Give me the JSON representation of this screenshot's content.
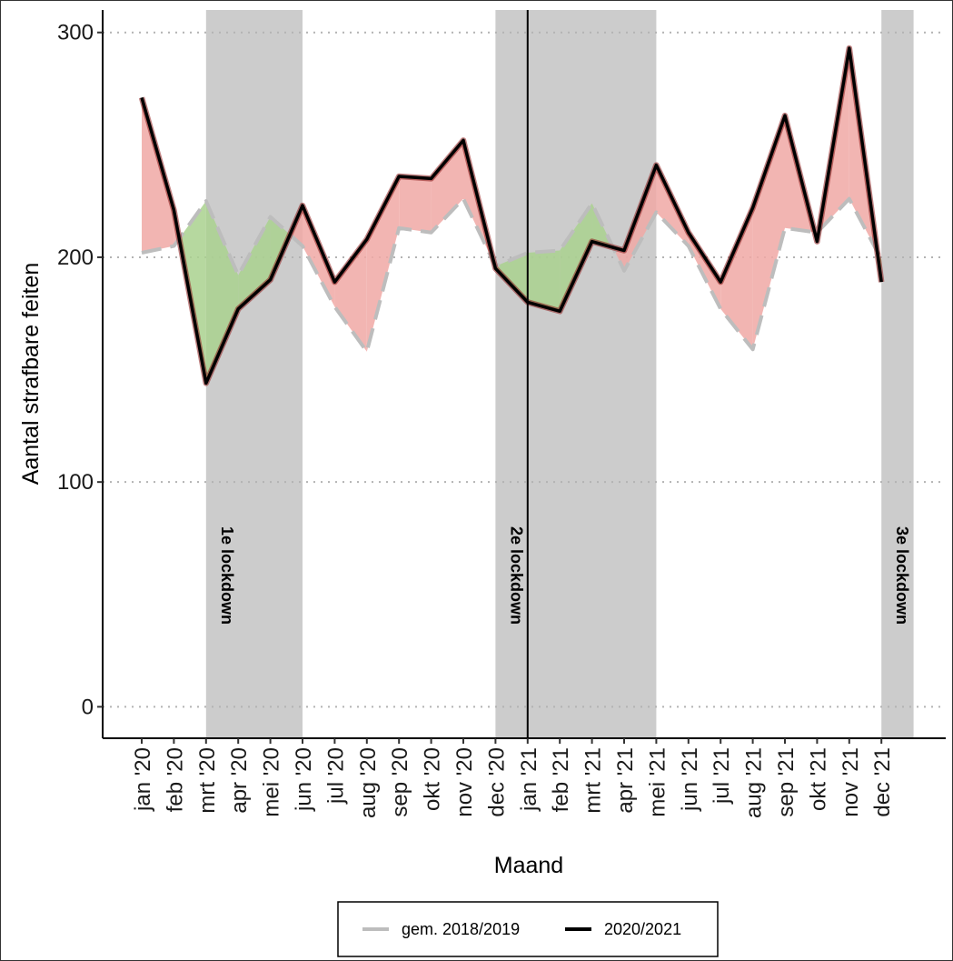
{
  "chart_data": {
    "type": "line",
    "xlabel": "Maand",
    "ylabel": "Aantal strafbare feiten",
    "ylim": [
      -14,
      310
    ],
    "yticks": [
      0,
      100,
      200,
      300
    ],
    "grid": "horizontal-dotted",
    "legend_position": "bottom",
    "categories": [
      "jan '20",
      "feb '20",
      "mrt '20",
      "apr '20",
      "mei '20",
      "jun '20",
      "jul '20",
      "aug '20",
      "sep '20",
      "okt '20",
      "nov '20",
      "dec '20",
      "jan '21",
      "feb '21",
      "mrt '21",
      "apr '21",
      "mei '21",
      "jun '21",
      "jul '21",
      "aug '21",
      "sep '21",
      "okt '21",
      "nov '21",
      "dec '21"
    ],
    "series": [
      {
        "name": "gem. 2018/2019",
        "style": "dashed",
        "color": "#bdbdbd",
        "values": [
          202,
          205,
          225,
          192,
          218,
          205,
          178,
          158,
          213,
          211,
          226,
          196,
          202,
          203,
          224,
          194,
          220,
          205,
          177,
          159,
          213,
          211,
          226,
          199
        ]
      },
      {
        "name": "2020/2021",
        "style": "solid",
        "color": "#000000",
        "values": [
          271,
          221,
          144,
          177,
          190,
          223,
          189,
          208,
          236,
          235,
          252,
          195,
          180,
          176,
          207,
          203,
          241,
          211,
          189,
          222,
          263,
          207,
          293,
          189
        ]
      }
    ],
    "fill_colors": {
      "above": "#f0a8a4",
      "below": "#a9d18e"
    },
    "lockdowns": [
      {
        "label": "1e lockdown",
        "start": 2,
        "end": 5
      },
      {
        "label": "2e lockdown",
        "start": 11,
        "end": 16
      },
      {
        "label": "3e lockdown",
        "start": 23,
        "end": 24
      }
    ],
    "band_color": "#cccccc",
    "vline_at": 12
  }
}
